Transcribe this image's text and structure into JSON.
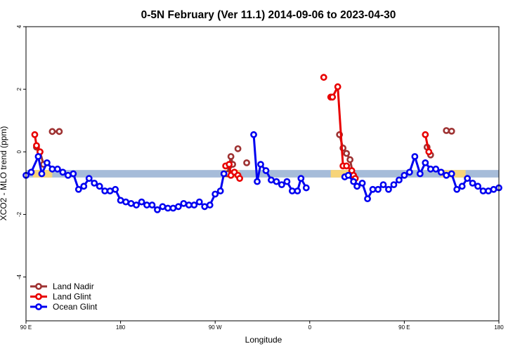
{
  "chart_data": {
    "type": "line",
    "title": "0-5N February (Ver 11.1)   2014-09-06 to 2023-04-30",
    "xlabel": "Longitude",
    "ylabel": "XCO2 - MLO trend (ppm)",
    "xlim": [
      -90,
      180
    ],
    "ylim": [
      -5.4,
      4
    ],
    "x_ticks": [
      {
        "value": -90,
        "label": "90 E"
      },
      {
        "value": -36,
        "label": "180"
      },
      {
        "value": 18,
        "label": "90 W"
      },
      {
        "value": 72,
        "label": "0"
      },
      {
        "value": 126,
        "label": "90 E"
      },
      {
        "value": 180,
        "label": "180"
      }
    ],
    "y_ticks": [
      {
        "value": -4,
        "label": "-4"
      },
      {
        "value": -2,
        "label": "-2"
      },
      {
        "value": 0,
        "label": "0"
      },
      {
        "value": 2,
        "label": "2"
      },
      {
        "value": 4,
        "label": "4"
      }
    ],
    "band": {
      "y_center": -0.7,
      "y_half_height": 0.12,
      "base_color": "#a6bcd9",
      "land_color": "#f7d479",
      "land_segments": [
        [
          -75,
          -86
        ],
        [
          32,
          22
        ],
        [
          97,
          84
        ],
        [
          161,
          147
        ]
      ]
    },
    "series": [
      {
        "name": "Land Nadir",
        "color": "#9e3232",
        "segments": [
          [
            [
              -84,
              0.15
            ],
            [
              -82,
              0.0
            ],
            [
              -80,
              -0.4
            ]
          ],
          [
            [
              -75,
              0.65
            ],
            [
              -71,
              0.65
            ]
          ],
          [
            [
              25,
              -0.7
            ],
            [
              26,
              -0.45
            ],
            [
              27,
              -0.15
            ],
            [
              28,
              -0.4
            ]
          ],
          [
            [
              31,
              0.1
            ]
          ],
          [
            [
              36,
              -0.35
            ]
          ],
          [
            [
              89,
              0.55
            ],
            [
              91,
              0.12
            ],
            [
              93,
              -0.05
            ],
            [
              95,
              -0.25
            ],
            [
              97,
              -0.8
            ]
          ],
          [
            [
              139,
              0.15
            ],
            [
              141,
              -0.1
            ]
          ],
          [
            [
              150,
              0.68
            ],
            [
              153,
              0.66
            ]
          ]
        ]
      },
      {
        "name": "Land Glint",
        "color": "#e80000",
        "segments": [
          [
            [
              -85,
              0.55
            ],
            [
              -84,
              0.2
            ],
            [
              -82,
              0.0
            ]
          ],
          [
            [
              24,
              -0.45
            ],
            [
              26,
              -0.4
            ],
            [
              27,
              -0.75
            ],
            [
              29,
              -0.65
            ],
            [
              31,
              -0.75
            ],
            [
              32,
              -0.85
            ]
          ],
          [
            [
              80,
              2.38
            ]
          ],
          [
            [
              84,
              1.75
            ],
            [
              85,
              1.75
            ],
            [
              88,
              2.08
            ],
            [
              91,
              -0.45
            ],
            [
              93,
              -0.45
            ],
            [
              96,
              -0.6
            ],
            [
              97,
              -0.75
            ],
            [
              98,
              -0.85
            ]
          ],
          [
            [
              138,
              0.55
            ],
            [
              140,
              0.0
            ]
          ]
        ]
      },
      {
        "name": "Ocean Glint",
        "color": "#0000f0",
        "segments": [
          [
            [
              -90,
              -0.75
            ],
            [
              -87,
              -0.65
            ],
            [
              -83,
              -0.15
            ],
            [
              -81,
              -0.7
            ],
            [
              -78,
              -0.35
            ],
            [
              -75,
              -0.55
            ],
            [
              -72,
              -0.55
            ],
            [
              -69,
              -0.65
            ],
            [
              -66,
              -0.75
            ],
            [
              -63,
              -0.7
            ],
            [
              -60,
              -1.2
            ],
            [
              -57,
              -1.1
            ],
            [
              -54,
              -0.85
            ],
            [
              -51,
              -1.0
            ],
            [
              -48,
              -1.1
            ],
            [
              -45,
              -1.25
            ],
            [
              -42,
              -1.25
            ],
            [
              -39,
              -1.2
            ],
            [
              -36,
              -1.55
            ],
            [
              -33,
              -1.6
            ],
            [
              -30,
              -1.65
            ],
            [
              -27,
              -1.7
            ],
            [
              -24,
              -1.6
            ],
            [
              -21,
              -1.7
            ],
            [
              -18,
              -1.7
            ],
            [
              -15,
              -1.85
            ],
            [
              -12,
              -1.75
            ],
            [
              -9,
              -1.8
            ],
            [
              -6,
              -1.8
            ],
            [
              -3,
              -1.75
            ],
            [
              0,
              -1.65
            ],
            [
              3,
              -1.7
            ],
            [
              6,
              -1.7
            ],
            [
              9,
              -1.6
            ],
            [
              12,
              -1.75
            ],
            [
              15,
              -1.7
            ],
            [
              18,
              -1.35
            ],
            [
              21,
              -1.25
            ],
            [
              23,
              -0.7
            ]
          ],
          [
            [
              40,
              0.55
            ],
            [
              42,
              -0.95
            ],
            [
              44,
              -0.4
            ],
            [
              47,
              -0.6
            ],
            [
              50,
              -0.9
            ],
            [
              53,
              -0.95
            ],
            [
              56,
              -1.05
            ],
            [
              59,
              -0.95
            ],
            [
              62,
              -1.25
            ],
            [
              65,
              -1.25
            ],
            [
              67,
              -0.85
            ],
            [
              70,
              -1.15
            ]
          ],
          [
            [
              92,
              -0.8
            ],
            [
              94,
              -0.75
            ],
            [
              97,
              -0.95
            ],
            [
              99,
              -1.1
            ],
            [
              102,
              -1.0
            ],
            [
              105,
              -1.5
            ],
            [
              108,
              -1.2
            ],
            [
              111,
              -1.2
            ],
            [
              114,
              -1.05
            ],
            [
              117,
              -1.2
            ],
            [
              120,
              -1.05
            ],
            [
              123,
              -0.9
            ],
            [
              126,
              -0.75
            ],
            [
              129,
              -0.65
            ],
            [
              132,
              -0.15
            ],
            [
              135,
              -0.7
            ],
            [
              138,
              -0.35
            ],
            [
              141,
              -0.55
            ],
            [
              144,
              -0.55
            ],
            [
              147,
              -0.65
            ],
            [
              150,
              -0.75
            ],
            [
              153,
              -0.7
            ],
            [
              156,
              -1.2
            ],
            [
              159,
              -1.1
            ],
            [
              162,
              -0.85
            ],
            [
              165,
              -1.0
            ],
            [
              168,
              -1.1
            ],
            [
              171,
              -1.25
            ],
            [
              174,
              -1.25
            ],
            [
              177,
              -1.2
            ],
            [
              180,
              -1.15
            ]
          ]
        ]
      }
    ],
    "legend": {
      "position": "bottom-left",
      "entries": [
        "Land Nadir",
        "Land Glint",
        "Ocean Glint"
      ]
    }
  }
}
